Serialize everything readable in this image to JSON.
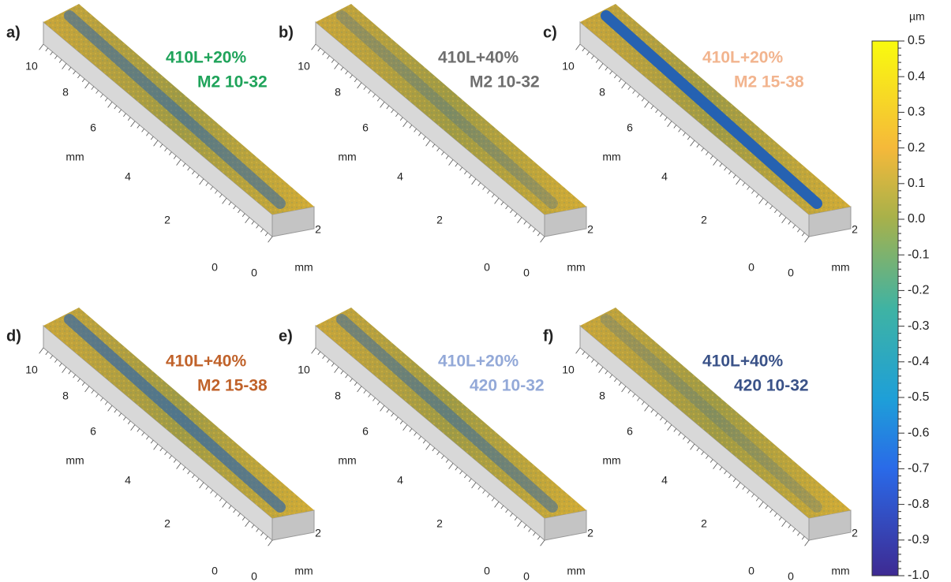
{
  "panels": [
    {
      "label": "a)",
      "lines": [
        "410L+20%",
        "M2 10-32"
      ],
      "color": "#1fa35a",
      "y_ticks": [
        "0",
        "2",
        "4",
        "6",
        "8",
        "10"
      ],
      "y_unit": "mm",
      "x_ticks": [
        "0",
        "2"
      ],
      "x_unit": "mm"
    },
    {
      "label": "b)",
      "lines": [
        "410L+40%",
        "M2 10-32"
      ],
      "color": "#6e6e6e",
      "y_ticks": [
        "0",
        "2",
        "4",
        "6",
        "8",
        "10"
      ],
      "y_unit": "mm",
      "x_ticks": [
        "0",
        "2"
      ],
      "x_unit": "mm"
    },
    {
      "label": "c)",
      "lines": [
        "410L+20%",
        "M2 15-38"
      ],
      "color": "#f2b48e",
      "y_ticks": [
        "0",
        "2",
        "4",
        "6",
        "8",
        "10"
      ],
      "y_unit": "mm",
      "x_ticks": [
        "0",
        "2"
      ],
      "x_unit": "mm"
    },
    {
      "label": "d)",
      "lines": [
        "410L+40%",
        "M2 15-38"
      ],
      "color": "#c0622a",
      "y_ticks": [
        "0",
        "2",
        "4",
        "6",
        "8",
        "10"
      ],
      "y_unit": "mm",
      "x_ticks": [
        "0",
        "2"
      ],
      "x_unit": "mm"
    },
    {
      "label": "e)",
      "lines": [
        "410L+20%",
        "420 10-32"
      ],
      "color": "#93a9d8",
      "y_ticks": [
        "0",
        "2",
        "4",
        "6",
        "8",
        "10"
      ],
      "y_unit": "mm",
      "x_ticks": [
        "0",
        "2"
      ],
      "x_unit": "mm"
    },
    {
      "label": "f)",
      "lines": [
        "410L+40%",
        "420 10-32"
      ],
      "color": "#3a5288",
      "y_ticks": [
        "0",
        "2",
        "4",
        "6",
        "8",
        "10"
      ],
      "y_unit": "mm",
      "x_ticks": [
        "0",
        "2"
      ],
      "x_unit": "mm"
    }
  ],
  "colorbar": {
    "unit": "µm",
    "ticks": [
      "0.5",
      "0.4",
      "0.3",
      "0.2",
      "0.1",
      "0.0",
      "-0.1",
      "-0.2",
      "-0.3",
      "-0.4",
      "-0.5",
      "-0.6",
      "-0.7",
      "-0.8",
      "-0.9",
      "-1.0"
    ]
  }
}
